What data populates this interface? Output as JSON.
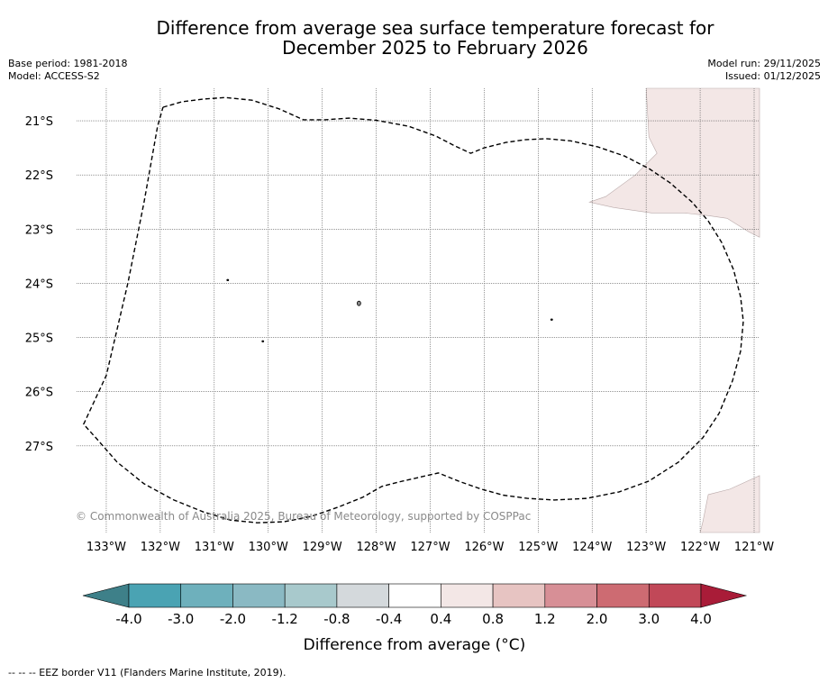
{
  "title_line1": "Difference from average sea surface temperature forecast for",
  "title_line2": "December 2025 to February 2026",
  "base_period": "Base period: 1981-2018",
  "model": "Model: ACCESS-S2",
  "model_run": "Model run: 29/11/2025",
  "issued": "Issued: 01/12/2025",
  "copyright": "© Commonwealth of Australia 2025, Bureau of Meteorology, supported by COSPPac",
  "footnote": "-- -- -- EEZ border V11 (Flanders Marine Institute, 2019).",
  "map": {
    "lon_min": -133.55,
    "lon_max": -120.9,
    "lat_max": -20.4,
    "lat_min": -28.6,
    "lon_ticks": [
      {
        "value": -133,
        "label": "133°W"
      },
      {
        "value": -132,
        "label": "132°W"
      },
      {
        "value": -131,
        "label": "131°W"
      },
      {
        "value": -130,
        "label": "130°W"
      },
      {
        "value": -129,
        "label": "129°W"
      },
      {
        "value": -128,
        "label": "128°W"
      },
      {
        "value": -127,
        "label": "127°W"
      },
      {
        "value": -126,
        "label": "126°W"
      },
      {
        "value": -125,
        "label": "125°W"
      },
      {
        "value": -124,
        "label": "124°W"
      },
      {
        "value": -123,
        "label": "123°W"
      },
      {
        "value": -122,
        "label": "122°W"
      },
      {
        "value": -121,
        "label": "121°W"
      }
    ],
    "lat_ticks": [
      {
        "value": -21,
        "label": "21°S"
      },
      {
        "value": -22,
        "label": "22°S"
      },
      {
        "value": -23,
        "label": "23°S"
      },
      {
        "value": -24,
        "label": "24°S"
      },
      {
        "value": -25,
        "label": "25°S"
      },
      {
        "value": -26,
        "label": "26°S"
      },
      {
        "value": -27,
        "label": "27°S"
      }
    ],
    "anomaly_color": "#f3e7e6",
    "grid_color": "#555555",
    "eez_border": [
      [
        -131.95,
        -20.75
      ],
      [
        -131.6,
        -20.65
      ],
      [
        -131.2,
        -20.6
      ],
      [
        -130.8,
        -20.57
      ],
      [
        -130.3,
        -20.62
      ],
      [
        -129.8,
        -20.78
      ],
      [
        -129.35,
        -20.98
      ],
      [
        -128.95,
        -20.98
      ],
      [
        -128.5,
        -20.95
      ],
      [
        -128.0,
        -20.99
      ],
      [
        -127.4,
        -21.1
      ],
      [
        -126.9,
        -21.28
      ],
      [
        -126.55,
        -21.46
      ],
      [
        -126.25,
        -21.6
      ],
      [
        -126.0,
        -21.5
      ],
      [
        -125.6,
        -21.4
      ],
      [
        -125.25,
        -21.35
      ],
      [
        -124.85,
        -21.33
      ],
      [
        -124.4,
        -21.37
      ],
      [
        -123.9,
        -21.48
      ],
      [
        -123.4,
        -21.65
      ],
      [
        -122.95,
        -21.88
      ],
      [
        -122.55,
        -22.15
      ],
      [
        -122.15,
        -22.5
      ],
      [
        -121.85,
        -22.85
      ],
      [
        -121.6,
        -23.25
      ],
      [
        -121.38,
        -23.75
      ],
      [
        -121.25,
        -24.25
      ],
      [
        -121.2,
        -24.7
      ],
      [
        -121.25,
        -25.25
      ],
      [
        -121.4,
        -25.8
      ],
      [
        -121.65,
        -26.4
      ],
      [
        -121.95,
        -26.85
      ],
      [
        -122.4,
        -27.3
      ],
      [
        -122.95,
        -27.65
      ],
      [
        -123.5,
        -27.85
      ],
      [
        -124.1,
        -27.97
      ],
      [
        -124.7,
        -28.0
      ],
      [
        -125.2,
        -27.97
      ],
      [
        -125.65,
        -27.91
      ],
      [
        -126.05,
        -27.8
      ],
      [
        -126.45,
        -27.66
      ],
      [
        -126.85,
        -27.5
      ],
      [
        -127.2,
        -27.58
      ],
      [
        -127.55,
        -27.66
      ],
      [
        -127.9,
        -27.75
      ],
      [
        -128.25,
        -27.95
      ],
      [
        -128.7,
        -28.13
      ],
      [
        -129.2,
        -28.3
      ],
      [
        -129.7,
        -28.4
      ],
      [
        -130.2,
        -28.42
      ],
      [
        -130.7,
        -28.37
      ],
      [
        -131.2,
        -28.22
      ],
      [
        -131.75,
        -28.0
      ],
      [
        -132.3,
        -27.7
      ],
      [
        -132.8,
        -27.3
      ],
      [
        -133.15,
        -26.9
      ],
      [
        -133.42,
        -26.6
      ],
      [
        -133.0,
        -25.7
      ],
      [
        -132.6,
        -24.0
      ],
      [
        -132.3,
        -22.5
      ],
      [
        -132.05,
        -21.1
      ],
      [
        -131.95,
        -20.75
      ]
    ],
    "islands": [
      [
        -128.32,
        -24.37
      ],
      [
        -130.75,
        -23.94
      ],
      [
        -130.1,
        -25.07
      ],
      [
        -124.75,
        -24.67
      ]
    ],
    "anomaly_regions": [
      [
        [
          -123.0,
          -20.4
        ],
        [
          -120.9,
          -20.4
        ],
        [
          -120.9,
          -23.15
        ],
        [
          -121.1,
          -23.05
        ],
        [
          -121.5,
          -22.8
        ],
        [
          -121.85,
          -22.75
        ],
        [
          -122.3,
          -22.7
        ],
        [
          -122.9,
          -22.7
        ],
        [
          -123.6,
          -22.6
        ],
        [
          -124.05,
          -22.5
        ],
        [
          -123.75,
          -22.4
        ],
        [
          -123.2,
          -22.0
        ],
        [
          -122.8,
          -21.6
        ],
        [
          -122.95,
          -21.3
        ],
        [
          -123.0,
          -20.4
        ]
      ],
      [
        [
          -122.0,
          -28.6
        ],
        [
          -120.9,
          -28.6
        ],
        [
          -120.9,
          -27.55
        ],
        [
          -121.45,
          -27.8
        ],
        [
          -121.85,
          -27.9
        ],
        [
          -121.95,
          -28.4
        ],
        [
          -122.0,
          -28.6
        ]
      ]
    ]
  },
  "colorbar": {
    "title": "Difference from average (°C)",
    "colors": [
      "#3e8089",
      "#4aa3b3",
      "#6eb0bc",
      "#8ab9c3",
      "#a8c9cc",
      "#d4d9dc",
      "#ffffff",
      "#f3e7e6",
      "#e7c4c2",
      "#d78f96",
      "#cd6b72",
      "#c14858",
      "#a91c38"
    ],
    "labels": [
      "-4.0",
      "-3.0",
      "-2.0",
      "-1.2",
      "-0.8",
      "-0.4",
      "0.4",
      "0.8",
      "1.2",
      "2.0",
      "3.0",
      "4.0"
    ]
  }
}
